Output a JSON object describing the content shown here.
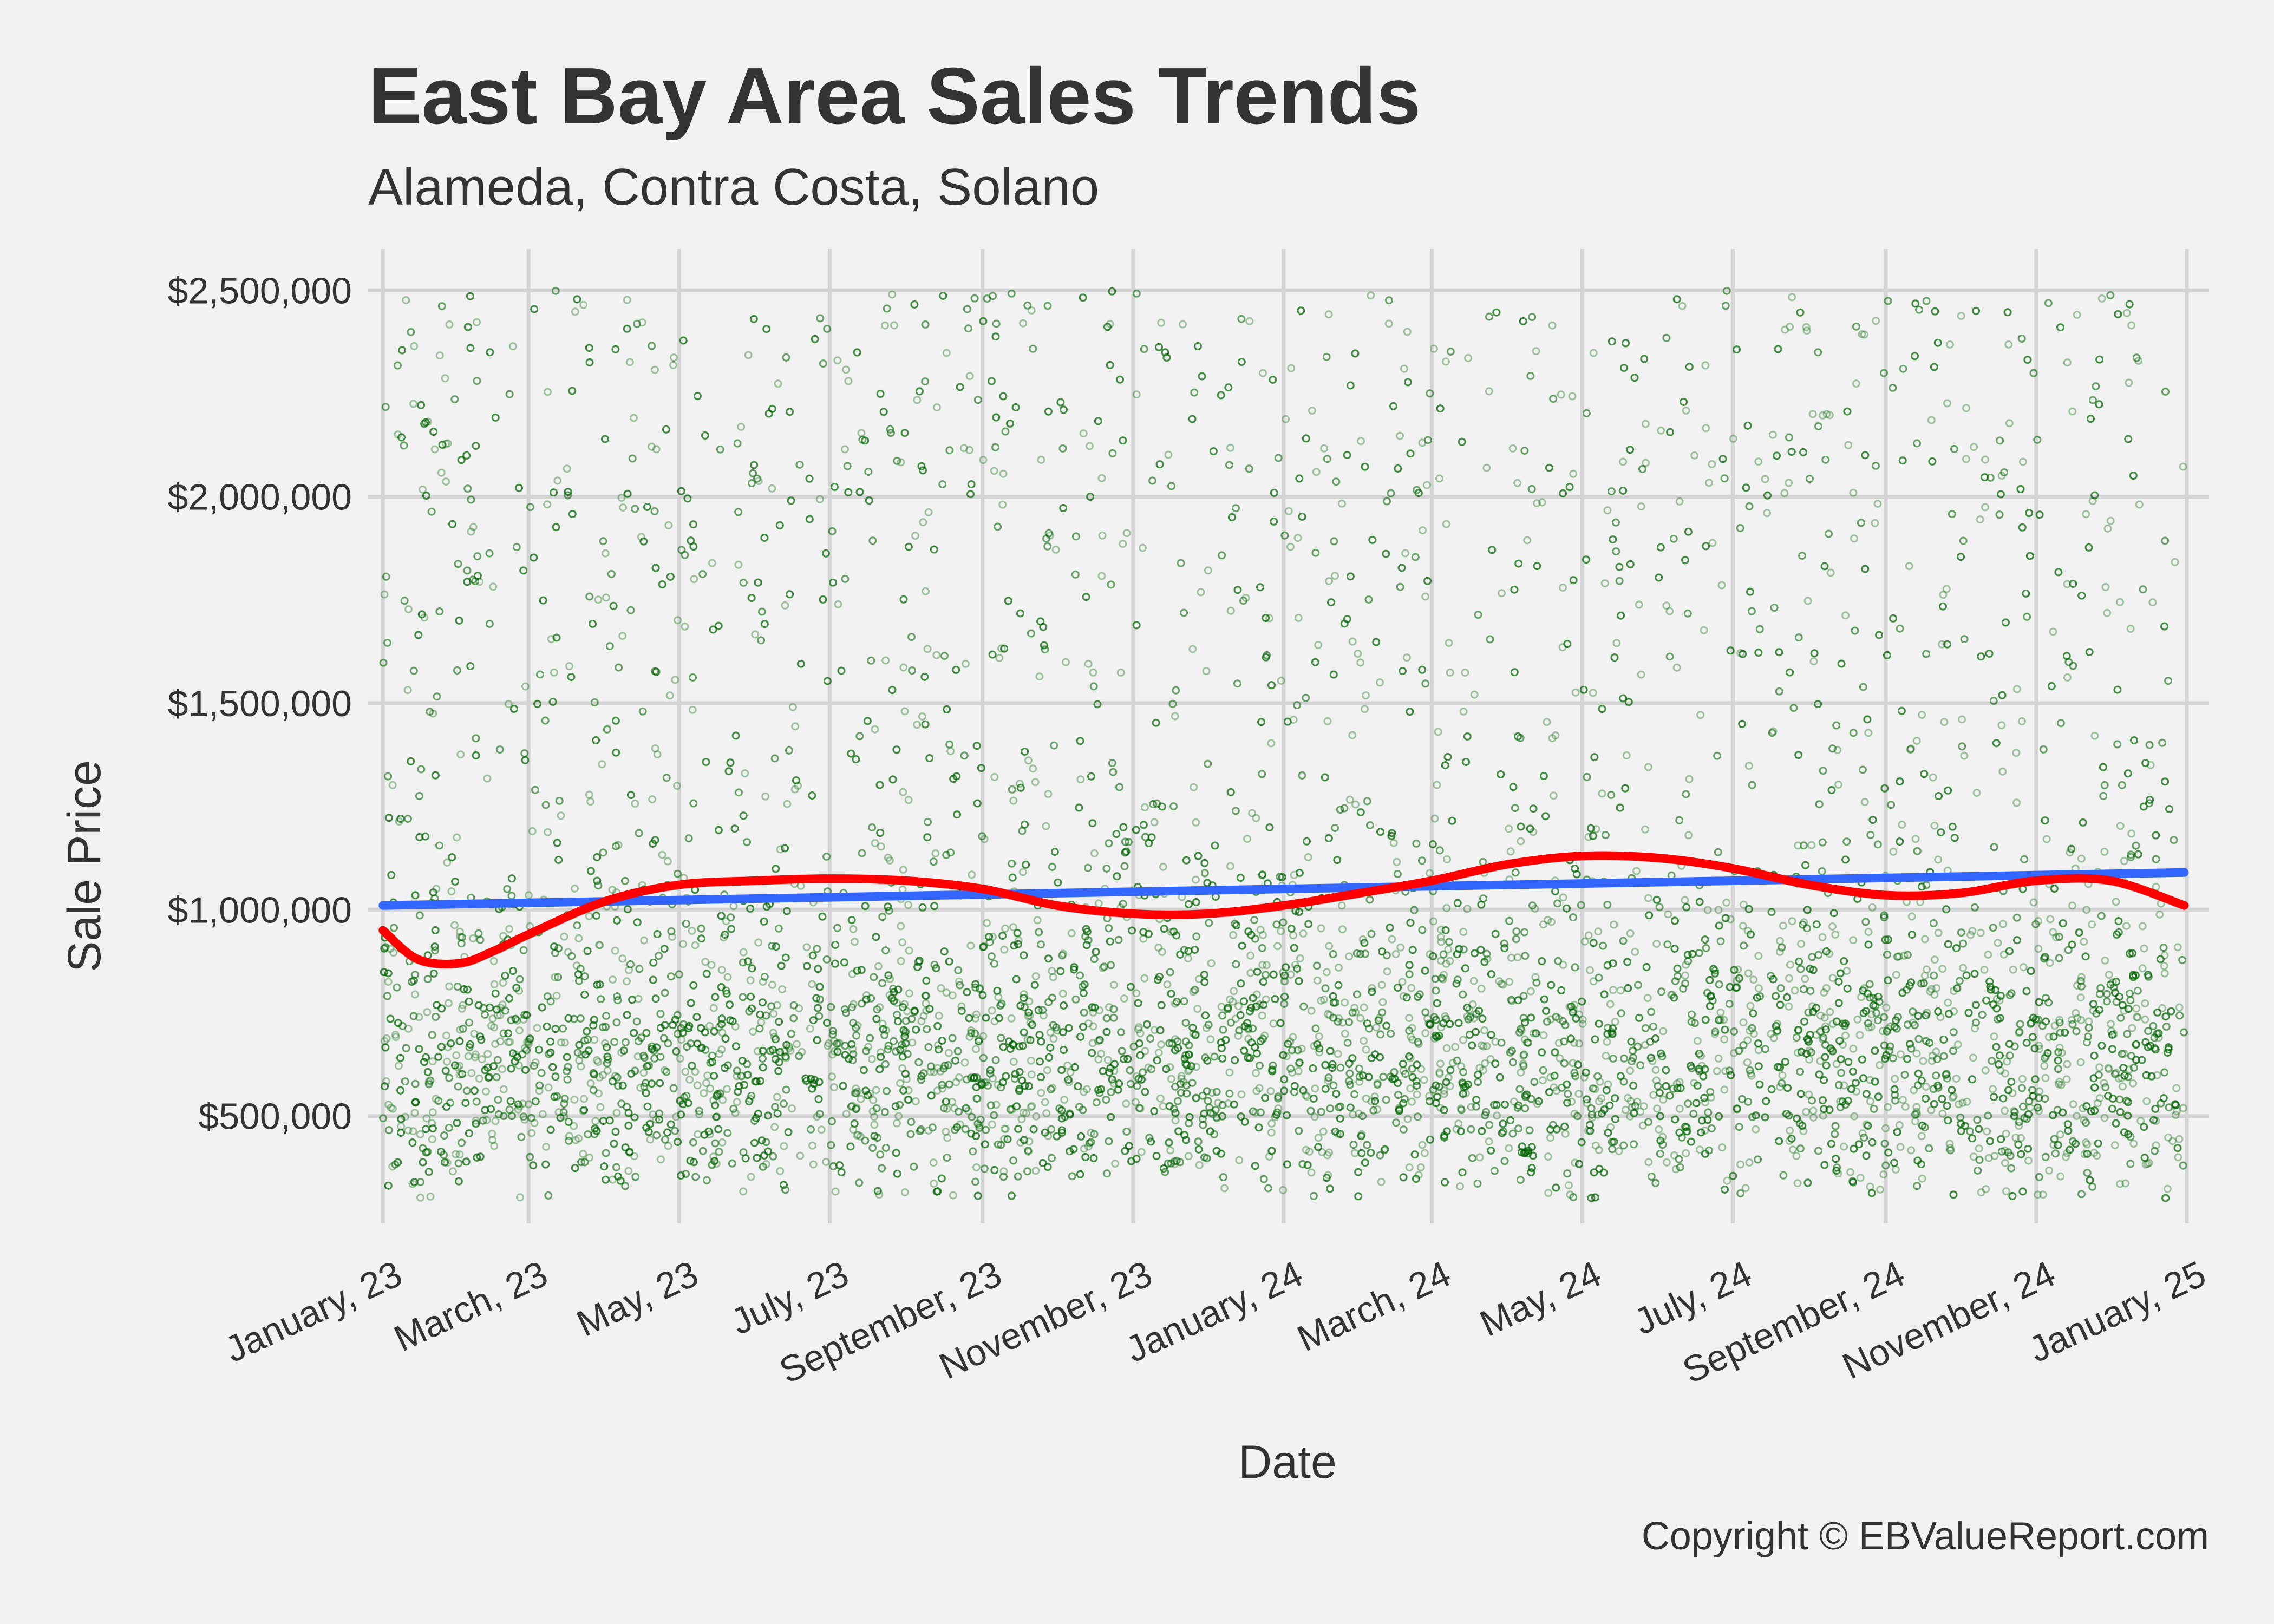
{
  "chart_data": {
    "type": "scatter",
    "title": "East Bay Area Sales Trends",
    "subtitle": "Alameda, Contra Costa, Solano",
    "xlabel": "Date",
    "ylabel": "Sale Price",
    "caption": "Copyright  © EBValueReport.com",
    "x_range": [
      "2022-12-26",
      "2025-01-10"
    ],
    "ylim": [
      240000,
      2600000
    ],
    "x_ticks": [
      {
        "date": "2023-01-01",
        "label": "January, 23"
      },
      {
        "date": "2023-03-01",
        "label": "March, 23"
      },
      {
        "date": "2023-05-01",
        "label": "May, 23"
      },
      {
        "date": "2023-07-01",
        "label": "July, 23"
      },
      {
        "date": "2023-09-01",
        "label": "September, 23"
      },
      {
        "date": "2023-11-01",
        "label": "November, 23"
      },
      {
        "date": "2024-01-01",
        "label": "January, 24"
      },
      {
        "date": "2024-03-01",
        "label": "March, 24"
      },
      {
        "date": "2024-05-01",
        "label": "May, 24"
      },
      {
        "date": "2024-07-01",
        "label": "July, 24"
      },
      {
        "date": "2024-09-01",
        "label": "September, 24"
      },
      {
        "date": "2024-11-01",
        "label": "November, 24"
      },
      {
        "date": "2025-01-01",
        "label": "January, 25"
      }
    ],
    "y_ticks": [
      {
        "value": 500000,
        "label": "$500,000"
      },
      {
        "value": 1000000,
        "label": "$1,000,000"
      },
      {
        "value": 1500000,
        "label": "$1,500,000"
      },
      {
        "value": 2000000,
        "label": "$2,000,000"
      },
      {
        "value": 2500000,
        "label": "$2,500,000"
      }
    ],
    "grid": true,
    "colors": {
      "points": "#006400",
      "linear_trend": "#3366ff",
      "smooth_trend": "#ff0000",
      "grid": "#d4d4d4",
      "background": "#f2f2f2",
      "text": "#333333"
    },
    "scatter": {
      "x_start": "2023-01-01",
      "x_end": "2024-12-31",
      "y_min": 300000,
      "y_max": 2500000,
      "point_count": 9000
    },
    "series": [
      {
        "type": "line",
        "x": [
          "2023-01-01",
          "2024-12-31"
        ],
        "y": [
          1010000,
          1090000
        ]
      },
      {
        "type": "line",
        "x": [
          "2023-01-01",
          "2023-01-15",
          "2023-02-01",
          "2023-02-15",
          "2023-03-01",
          "2023-04-01",
          "2023-05-01",
          "2023-06-01",
          "2023-07-01",
          "2023-08-01",
          "2023-09-01",
          "2023-10-01",
          "2023-11-01",
          "2023-12-01",
          "2024-01-01",
          "2024-02-01",
          "2024-03-01",
          "2024-04-01",
          "2024-05-01",
          "2024-06-01",
          "2024-07-01",
          "2024-08-01",
          "2024-09-01",
          "2024-10-01",
          "2024-11-01",
          "2024-12-01",
          "2024-12-31"
        ],
        "y": [
          950000,
          880000,
          870000,
          900000,
          940000,
          1020000,
          1060000,
          1070000,
          1075000,
          1070000,
          1050000,
          1010000,
          990000,
          990000,
          1010000,
          1040000,
          1070000,
          1110000,
          1130000,
          1125000,
          1100000,
          1060000,
          1035000,
          1040000,
          1070000,
          1070000,
          1010000
        ]
      }
    ]
  }
}
